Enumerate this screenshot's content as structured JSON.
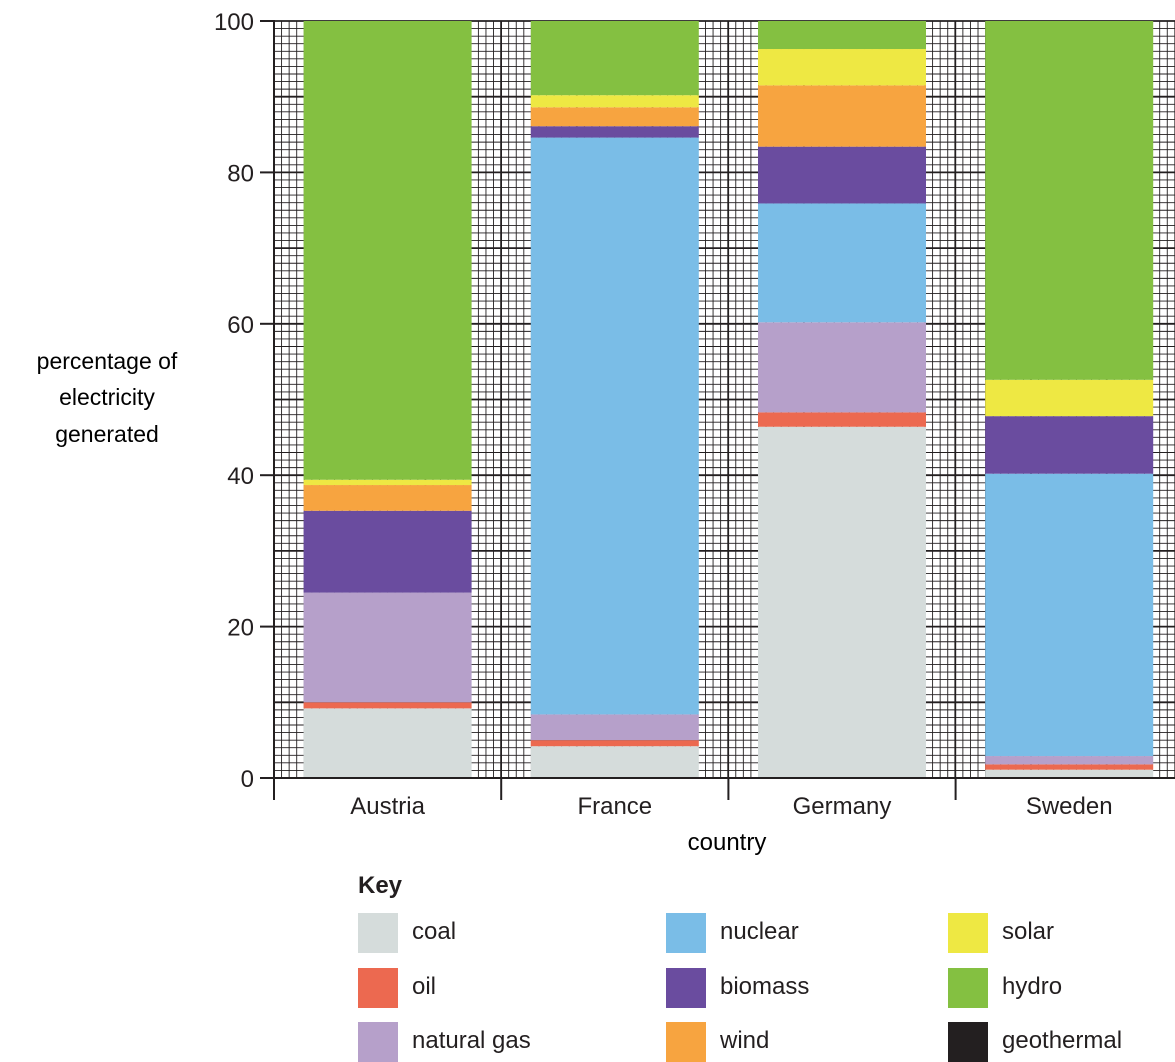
{
  "chart_data": {
    "type": "bar",
    "stacked": true,
    "categories": [
      "Austria",
      "France",
      "Germany",
      "Sweden"
    ],
    "xlabel": "country",
    "ylabel": [
      "percentage of",
      "electricity",
      "generated"
    ],
    "ylim": [
      0,
      100
    ],
    "yticks": [
      "0",
      "20",
      "40",
      "60",
      "80",
      "100"
    ],
    "grid": true,
    "legend_title": "Key",
    "legend_position": "bottom",
    "series": [
      {
        "name": "coal",
        "color": "#d5dcdb",
        "values": [
          9.2,
          4.2,
          46.4,
          1.1
        ]
      },
      {
        "name": "oil",
        "color": "#ec6950",
        "values": [
          0.8,
          0.8,
          1.9,
          0.7
        ]
      },
      {
        "name": "natural gas",
        "color": "#b6a0ca",
        "values": [
          14.5,
          3.4,
          11.9,
          1.1
        ]
      },
      {
        "name": "nuclear",
        "color": "#7abde7",
        "values": [
          0,
          76.2,
          15.7,
          37.3
        ]
      },
      {
        "name": "biomass",
        "color": "#6a4c9f",
        "values": [
          10.8,
          1.5,
          7.5,
          7.6
        ]
      },
      {
        "name": "wind",
        "color": "#f7a440",
        "values": [
          3.4,
          2.5,
          8.1,
          0
        ]
      },
      {
        "name": "solar",
        "color": "#eee843",
        "values": [
          0.7,
          1.6,
          4.8,
          4.8
        ]
      },
      {
        "name": "hydro",
        "color": "#84c041",
        "values": [
          60.6,
          9.8,
          3.7,
          47.4
        ]
      },
      {
        "name": "geothermal",
        "color": "#231f20",
        "values": [
          0,
          0,
          0,
          0
        ]
      }
    ]
  }
}
